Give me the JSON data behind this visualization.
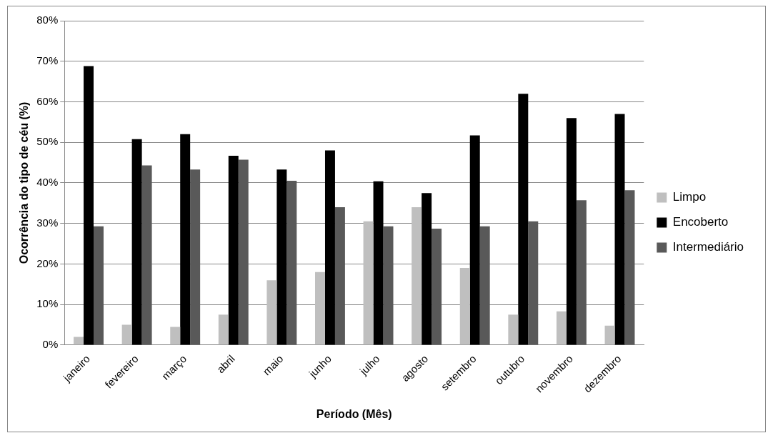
{
  "chart_data": {
    "type": "bar",
    "xlabel": "Período (Mês)",
    "ylabel": "Ocorrência do tipo de céu (%)",
    "categories": [
      "janeiro",
      "fevereiro",
      "março",
      "abril",
      "maio",
      "junho",
      "julho",
      "agosto",
      "setembro",
      "outubro",
      "novembro",
      "dezembro"
    ],
    "series": [
      {
        "name": "Limpo",
        "color": "#bfbfbf",
        "values": [
          2,
          5,
          4.5,
          7.5,
          16,
          18,
          30.5,
          34,
          19,
          7.5,
          8.3,
          4.8
        ]
      },
      {
        "name": "Encoberto",
        "color": "#000000",
        "values": [
          68.8,
          50.8,
          52,
          46.7,
          43.3,
          48,
          40.4,
          37.5,
          51.7,
          62,
          56,
          57
        ]
      },
      {
        "name": "Intermediário",
        "color": "#595959",
        "values": [
          29.3,
          44.3,
          43.3,
          45.7,
          40.5,
          34,
          29.3,
          28.7,
          29.3,
          30.5,
          35.7,
          38.2
        ]
      }
    ],
    "ylim": [
      0,
      80
    ],
    "yticks": [
      {
        "value": 0,
        "label": "0%"
      },
      {
        "value": 10,
        "label": "10%"
      },
      {
        "value": 20,
        "label": "20%"
      },
      {
        "value": 30,
        "label": "30%"
      },
      {
        "value": 40,
        "label": "40%"
      },
      {
        "value": 50,
        "label": "50%"
      },
      {
        "value": 60,
        "label": "60%"
      },
      {
        "value": 70,
        "label": "70%"
      },
      {
        "value": 80,
        "label": "80%"
      }
    ],
    "grid": "y",
    "legend": "right"
  }
}
